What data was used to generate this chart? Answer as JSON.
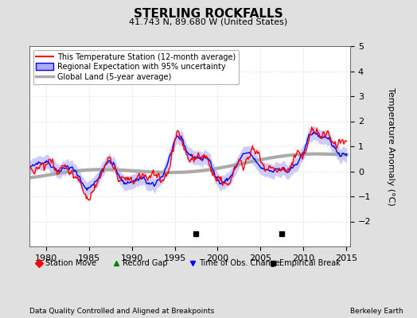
{
  "title": "STERLING ROCKFALLS",
  "subtitle": "41.743 N, 89.680 W (United States)",
  "ylabel": "Temperature Anomaly (°C)",
  "footer_left": "Data Quality Controlled and Aligned at Breakpoints",
  "footer_right": "Berkeley Earth",
  "xlim": [
    1978,
    2015.5
  ],
  "ylim": [
    -3,
    5
  ],
  "yticks": [
    -2,
    -1,
    0,
    1,
    2,
    3,
    4,
    5
  ],
  "xticks": [
    1980,
    1985,
    1990,
    1995,
    2000,
    2005,
    2010,
    2015
  ],
  "legend_items": [
    "This Temperature Station (12-month average)",
    "Regional Expectation with 95% uncertainty",
    "Global Land (5-year average)"
  ],
  "empirical_breaks": [
    1997.5,
    2007.5
  ],
  "bg_color": "#e0e0e0",
  "plot_bg_color": "#ffffff",
  "grid_color": "#cccccc",
  "station_color": "#ff0000",
  "regional_color": "#0000ff",
  "regional_fill": "#aaaaff",
  "global_color": "#aaaaaa",
  "seed": 42
}
